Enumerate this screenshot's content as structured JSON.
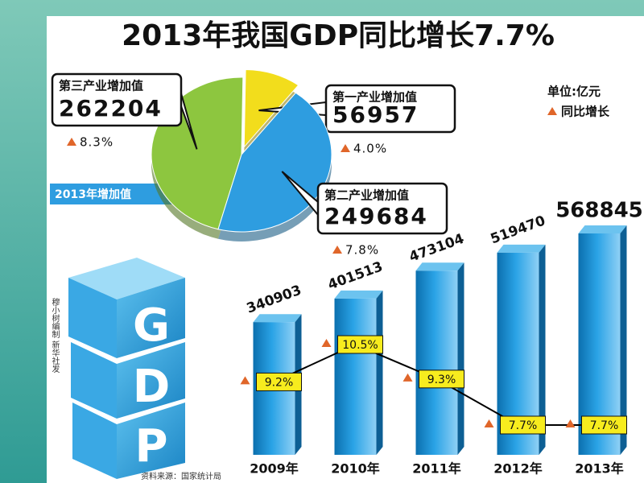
{
  "title": "2013年我国GDP同比增长7.7%",
  "unit_label": "单位:亿元",
  "growth_legend": "同比增长",
  "credit": "穆小树编制 新华社发",
  "source": "资料来源：国家统计局",
  "gdp_letters": [
    "G",
    "D",
    "P"
  ],
  "chart_data": [
    {
      "type": "pie",
      "label": "2013年增加值",
      "categories": [
        "第三产业增加值",
        "第一产业增加值",
        "第二产业增加值"
      ],
      "values": [
        262204,
        56957,
        249684
      ],
      "colors": [
        "#8dc63f",
        "#f2dd1c",
        "#2e9de0"
      ],
      "growth": [
        8.3,
        4.0,
        7.8
      ],
      "growth_labels": [
        "8.3%",
        "4.0%",
        "7.8%"
      ]
    },
    {
      "type": "bar",
      "categories": [
        "2009年",
        "2010年",
        "2011年",
        "2012年",
        "2013年"
      ],
      "series": [
        {
          "color": "#1e8fcf",
          "values": [
            340903,
            401513,
            473104,
            519470,
            568845
          ]
        },
        {
          "name": "同比增长",
          "axis": "y2",
          "color": "#000000",
          "values": [
            9.2,
            10.5,
            9.3,
            7.7,
            7.7
          ],
          "value_labels": [
            "9.2%",
            "10.5%",
            "9.3%",
            "7.7%",
            "7.7%"
          ]
        }
      ]
    }
  ]
}
